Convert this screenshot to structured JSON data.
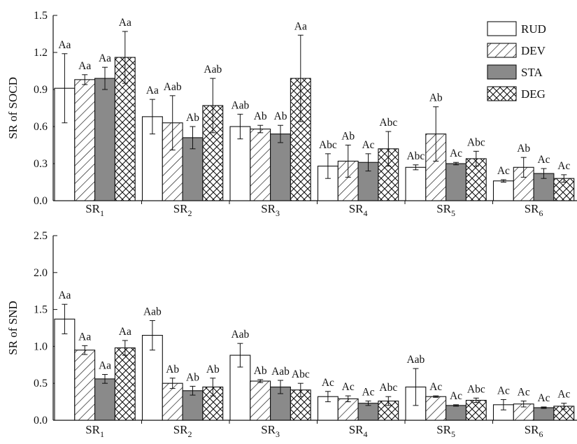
{
  "colors": {
    "RUD": "#ffffff",
    "DEV": "#ffffff",
    "STA": "#8a8a8a",
    "DEG": "#ffffff",
    "axis": "#111111"
  },
  "patterns": {
    "RUD": "solid",
    "DEV": "diagonal-hatch",
    "STA": "solid",
    "DEG": "cross-hatch"
  },
  "legend": {
    "position": "top-right",
    "items": [
      "RUD",
      "DEV",
      "STA",
      "DEG"
    ]
  },
  "chart_data": [
    {
      "type": "bar",
      "ylabel": "SR of SOCD",
      "ylim": [
        0,
        1.5
      ],
      "yticks": [
        "0.0",
        "0.3",
        "0.6",
        "0.9",
        "1.2",
        "1.5"
      ],
      "categories": [
        {
          "base": "SR",
          "sub": "1"
        },
        {
          "base": "SR",
          "sub": "2"
        },
        {
          "base": "SR",
          "sub": "3"
        },
        {
          "base": "SR",
          "sub": "4"
        },
        {
          "base": "SR",
          "sub": "5"
        },
        {
          "base": "SR",
          "sub": "6"
        }
      ],
      "series": [
        {
          "name": "RUD",
          "values": [
            0.91,
            0.68,
            0.6,
            0.28,
            0.27,
            0.16
          ],
          "errors": [
            0.28,
            0.14,
            0.1,
            0.1,
            0.02,
            0.01
          ],
          "labels": [
            "Aa",
            "Aa",
            "Aab",
            "Abc",
            "Abc",
            "Ac"
          ]
        },
        {
          "name": "DEV",
          "values": [
            0.98,
            0.63,
            0.58,
            0.32,
            0.54,
            0.27
          ],
          "errors": [
            0.04,
            0.22,
            0.03,
            0.13,
            0.22,
            0.08
          ],
          "labels": [
            "Aa",
            "Aab",
            "Ab",
            "Ab",
            "Ab",
            "Ab"
          ]
        },
        {
          "name": "STA",
          "values": [
            0.99,
            0.51,
            0.54,
            0.31,
            0.3,
            0.22
          ],
          "errors": [
            0.09,
            0.09,
            0.07,
            0.07,
            0.01,
            0.04
          ],
          "labels": [
            "Aa",
            "Ab",
            "Ab",
            "Ac",
            "Ac",
            "Ac"
          ]
        },
        {
          "name": "DEG",
          "values": [
            1.16,
            0.77,
            0.99,
            0.42,
            0.34,
            0.18
          ],
          "errors": [
            0.21,
            0.22,
            0.35,
            0.14,
            0.06,
            0.03
          ],
          "labels": [
            "Aa",
            "Aab",
            "Aa",
            "Abc",
            "Abc",
            "Ac"
          ]
        }
      ]
    },
    {
      "type": "bar",
      "ylabel": "SR of SND",
      "ylim": [
        0,
        2.5
      ],
      "yticks": [
        "0.0",
        "0.5",
        "1.0",
        "1.5",
        "2.0",
        "2.5"
      ],
      "categories": [
        {
          "base": "SR",
          "sub": "1"
        },
        {
          "base": "SR",
          "sub": "2"
        },
        {
          "base": "SR",
          "sub": "3"
        },
        {
          "base": "SR",
          "sub": "4"
        },
        {
          "base": "SR",
          "sub": "5"
        },
        {
          "base": "SR",
          "sub": "6"
        }
      ],
      "series": [
        {
          "name": "RUD",
          "values": [
            1.37,
            1.15,
            0.88,
            0.32,
            0.45,
            0.21
          ],
          "errors": [
            0.2,
            0.2,
            0.16,
            0.07,
            0.25,
            0.07
          ],
          "labels": [
            "Aa",
            "Aab",
            "Aab",
            "Ac",
            "Aab",
            "Ac"
          ]
        },
        {
          "name": "DEV",
          "values": [
            0.95,
            0.5,
            0.53,
            0.29,
            0.32,
            0.22
          ],
          "errors": [
            0.06,
            0.07,
            0.02,
            0.04,
            0.01,
            0.04
          ],
          "labels": [
            "Aa",
            "Ab",
            "Ab",
            "Ac",
            "Ac",
            "Ac"
          ]
        },
        {
          "name": "STA",
          "values": [
            0.56,
            0.4,
            0.45,
            0.23,
            0.2,
            0.17
          ],
          "errors": [
            0.06,
            0.06,
            0.09,
            0.03,
            0.01,
            0.01
          ],
          "labels": [
            "Aa",
            "Ab",
            "Aab",
            "Ac",
            "Ac",
            "Ac"
          ]
        },
        {
          "name": "DEG",
          "values": [
            0.98,
            0.45,
            0.41,
            0.26,
            0.27,
            0.19
          ],
          "errors": [
            0.1,
            0.12,
            0.09,
            0.06,
            0.03,
            0.04
          ],
          "labels": [
            "Aa",
            "Ab",
            "Abc",
            "Abc",
            "Abc",
            "Ac"
          ]
        }
      ]
    }
  ]
}
